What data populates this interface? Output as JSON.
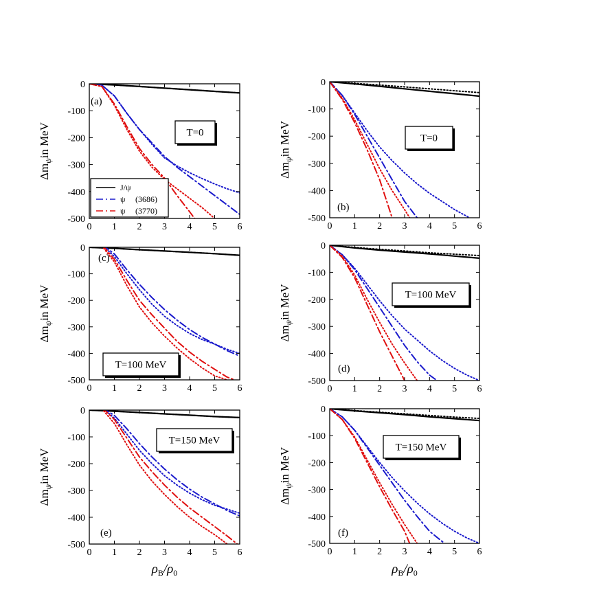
{
  "figure": {
    "ylabel_main": "Δm",
    "ylabel_sub": "ψ",
    "ylabel_tail": "in MeV",
    "xlabel_main": "ρ",
    "xlabel_sub1": "B",
    "xlabel_sep": "/ρ",
    "xlabel_sub2": "0"
  },
  "legend": [
    {
      "symbol": "J/ψ",
      "mass": "",
      "color": "#000000"
    },
    {
      "symbol": "ψ",
      "mass": "(3686)",
      "color": "#0000dd"
    },
    {
      "symbol": "ψ",
      "mass": "(3770)",
      "color": "#dd0000"
    }
  ],
  "colors": {
    "jpsi": "#000000",
    "psi3686": "#1a1acc",
    "psi3770": "#e01010"
  },
  "chart_data": [
    {
      "type": "line",
      "panel": "(a)",
      "temperature_label": "T=0",
      "xlim": [
        0,
        6
      ],
      "ylim": [
        -500,
        0
      ],
      "xticks": [
        0,
        1,
        2,
        3,
        4,
        5,
        6
      ],
      "yticks": [
        0,
        -100,
        -200,
        -300,
        -400,
        -500
      ],
      "series": [
        {
          "name": "J/ψ",
          "dash": "solid",
          "x": [
            0,
            1,
            2,
            3,
            4,
            5,
            6
          ],
          "y": [
            0,
            -4,
            -10,
            -16,
            -22,
            -28,
            -34
          ]
        },
        {
          "dash": "dotted",
          "x": [
            0,
            1,
            2,
            3,
            4,
            5,
            6
          ],
          "y": [
            0,
            -4,
            -10,
            -16,
            -22,
            -28,
            -34
          ]
        },
        {
          "name": "ψ (3686)",
          "dash": "dashdot",
          "x": [
            0,
            0.5,
            1,
            1.5,
            2,
            2.5,
            3,
            3.5,
            4,
            4.5,
            5,
            5.5,
            6
          ],
          "y": [
            0,
            -5,
            -45,
            -110,
            -170,
            -220,
            -270,
            -310,
            -345,
            -380,
            -415,
            -450,
            -485
          ]
        },
        {
          "dash": "dotted",
          "x": [
            0,
            0.5,
            1,
            1.5,
            2,
            2.5,
            3,
            3.5,
            4,
            4.5,
            5,
            5.5,
            6
          ],
          "y": [
            0,
            -5,
            -45,
            -110,
            -170,
            -225,
            -275,
            -305,
            -330,
            -352,
            -372,
            -390,
            -405
          ]
        },
        {
          "name": "ψ (3770)",
          "dash": "dashdot",
          "x": [
            0,
            0.5,
            1,
            1.5,
            2,
            2.5,
            3,
            3.5,
            4,
            4.2
          ],
          "y": [
            0,
            -10,
            -75,
            -160,
            -240,
            -300,
            -350,
            -415,
            -475,
            -500
          ]
        },
        {
          "dash": "dotted",
          "x": [
            0,
            0.5,
            1,
            1.5,
            2,
            2.5,
            3,
            3.5,
            4,
            4.5,
            5
          ],
          "y": [
            0,
            -10,
            -80,
            -170,
            -250,
            -310,
            -355,
            -390,
            -425,
            -460,
            -500
          ]
        }
      ]
    },
    {
      "type": "line",
      "panel": "(b)",
      "temperature_label": "T=0",
      "xlim": [
        0,
        6
      ],
      "ylim": [
        -500,
        0
      ],
      "xticks": [
        0,
        1,
        2,
        3,
        4,
        5,
        6
      ],
      "yticks": [
        0,
        -100,
        -200,
        -300,
        -400,
        -500
      ],
      "series": [
        {
          "name": "J/ψ",
          "dash": "solid",
          "x": [
            0,
            1,
            2,
            3,
            4,
            5,
            6
          ],
          "y": [
            0,
            -8,
            -17,
            -26,
            -35,
            -44,
            -53
          ]
        },
        {
          "dash": "dotted",
          "x": [
            0,
            1,
            2,
            3,
            4,
            5,
            6
          ],
          "y": [
            0,
            -6,
            -12,
            -19,
            -26,
            -33,
            -40
          ]
        },
        {
          "name": "ψ (3686)",
          "dash": "dashdot",
          "x": [
            0,
            0.5,
            1,
            1.5,
            2,
            2.5,
            3,
            3.5
          ],
          "y": [
            0,
            -50,
            -120,
            -200,
            -280,
            -360,
            -440,
            -500
          ]
        },
        {
          "dash": "dotted",
          "x": [
            0,
            0.5,
            1,
            1.5,
            2,
            2.5,
            3,
            3.5,
            4,
            4.5,
            5,
            5.6
          ],
          "y": [
            0,
            -50,
            -115,
            -180,
            -240,
            -290,
            -335,
            -375,
            -410,
            -440,
            -470,
            -500
          ]
        },
        {
          "name": "ψ (3770)",
          "dash": "dashdot",
          "x": [
            0,
            0.5,
            1,
            1.5,
            2,
            2.5
          ],
          "y": [
            0,
            -65,
            -150,
            -250,
            -360,
            -500
          ]
        },
        {
          "dash": "dotted",
          "x": [
            0,
            0.5,
            1,
            1.5,
            2,
            2.5,
            3,
            3.2
          ],
          "y": [
            0,
            -60,
            -140,
            -230,
            -320,
            -400,
            -470,
            -500
          ]
        }
      ]
    },
    {
      "type": "line",
      "panel": "(c)",
      "temperature_label": "T=100 MeV",
      "xlim": [
        0,
        6
      ],
      "ylim": [
        -500,
        0
      ],
      "xticks": [
        0,
        1,
        2,
        3,
        4,
        5,
        6
      ],
      "yticks": [
        0,
        -100,
        -200,
        -300,
        -400,
        -500
      ],
      "series": [
        {
          "name": "J/ψ",
          "dash": "solid",
          "x": [
            0,
            1,
            2,
            3,
            4,
            5,
            6
          ],
          "y": [
            0,
            -4,
            -9,
            -14,
            -19,
            -24,
            -30
          ]
        },
        {
          "dash": "dotted",
          "x": [
            0,
            1,
            2,
            3,
            4,
            5,
            6
          ],
          "y": [
            0,
            -4,
            -9,
            -14,
            -19,
            -24,
            -30
          ]
        },
        {
          "name": "ψ (3686)",
          "dash": "dashdot",
          "x": [
            0,
            0.5,
            1,
            1.5,
            2,
            2.5,
            3,
            3.5,
            4,
            4.5,
            5,
            5.5,
            6
          ],
          "y": [
            5,
            10,
            -25,
            -85,
            -140,
            -190,
            -235,
            -275,
            -310,
            -340,
            -365,
            -390,
            -410
          ]
        },
        {
          "dash": "dotted",
          "x": [
            0,
            0.5,
            1,
            1.5,
            2,
            2.5,
            3,
            3.5,
            4,
            4.5,
            5,
            5.5,
            6
          ],
          "y": [
            5,
            10,
            -35,
            -100,
            -160,
            -215,
            -260,
            -295,
            -325,
            -348,
            -365,
            -385,
            -400
          ]
        },
        {
          "name": "ψ (3770)",
          "dash": "dashdot",
          "x": [
            0,
            0.5,
            1,
            1.5,
            2,
            2.5,
            3,
            3.5,
            4,
            4.5,
            5,
            5.5,
            5.8
          ],
          "y": [
            5,
            10,
            -45,
            -125,
            -200,
            -255,
            -305,
            -355,
            -395,
            -430,
            -460,
            -490,
            -500
          ]
        },
        {
          "dash": "dotted",
          "x": [
            0,
            0.5,
            1,
            1.5,
            2,
            2.5,
            3,
            3.5,
            4,
            4.5,
            5,
            5.5
          ],
          "y": [
            5,
            5,
            -55,
            -145,
            -225,
            -285,
            -335,
            -380,
            -420,
            -455,
            -485,
            -500
          ]
        }
      ]
    },
    {
      "type": "line",
      "panel": "(d)",
      "temperature_label": "T=100 MeV",
      "xlim": [
        0,
        6
      ],
      "ylim": [
        -500,
        0
      ],
      "xticks": [
        0,
        1,
        2,
        3,
        4,
        5,
        6
      ],
      "yticks": [
        0,
        -100,
        -200,
        -300,
        -400,
        -500
      ],
      "series": [
        {
          "name": "J/ψ",
          "dash": "solid",
          "x": [
            0,
            1,
            2,
            3,
            4,
            5,
            6
          ],
          "y": [
            0,
            -10,
            -18,
            -25,
            -32,
            -40,
            -48
          ]
        },
        {
          "dash": "dotted",
          "x": [
            0,
            1,
            2,
            3,
            4,
            5,
            6
          ],
          "y": [
            0,
            -8,
            -15,
            -21,
            -28,
            -33,
            -38
          ]
        },
        {
          "name": "ψ (3686)",
          "dash": "dashdot",
          "x": [
            0,
            0.5,
            1,
            1.5,
            2,
            2.5,
            3,
            3.5,
            4,
            4.3
          ],
          "y": [
            0,
            -35,
            -90,
            -160,
            -230,
            -300,
            -370,
            -430,
            -480,
            -500
          ]
        },
        {
          "dash": "dotted",
          "x": [
            0,
            0.5,
            1,
            1.5,
            2,
            2.5,
            3,
            3.5,
            4,
            4.5,
            5,
            5.5,
            6
          ],
          "y": [
            0,
            -35,
            -85,
            -145,
            -205,
            -260,
            -310,
            -350,
            -390,
            -425,
            -455,
            -480,
            -500
          ]
        },
        {
          "name": "ψ (3770)",
          "dash": "dashdot",
          "x": [
            0,
            0.5,
            1,
            1.5,
            2,
            2.5,
            3
          ],
          "y": [
            0,
            -45,
            -120,
            -220,
            -320,
            -410,
            -500
          ]
        },
        {
          "dash": "dotted",
          "x": [
            0,
            0.5,
            1,
            1.5,
            2,
            2.5,
            3,
            3.5
          ],
          "y": [
            0,
            -40,
            -110,
            -200,
            -285,
            -365,
            -435,
            -500
          ]
        }
      ]
    },
    {
      "type": "line",
      "panel": "(e)",
      "temperature_label": "T=150 MeV",
      "xlim": [
        0,
        6
      ],
      "ylim": [
        -500,
        0
      ],
      "xticks": [
        0,
        1,
        2,
        3,
        4,
        5,
        6
      ],
      "yticks": [
        0,
        -100,
        -200,
        -300,
        -400,
        -500
      ],
      "series": [
        {
          "name": "J/ψ",
          "dash": "solid",
          "x": [
            0,
            1,
            2,
            3,
            4,
            5,
            6
          ],
          "y": [
            0,
            -4,
            -9,
            -14,
            -19,
            -24,
            -28
          ]
        },
        {
          "dash": "dotted",
          "x": [
            0,
            1,
            2,
            3,
            4,
            5,
            6
          ],
          "y": [
            0,
            -4,
            -9,
            -14,
            -19,
            -24,
            -28
          ]
        },
        {
          "name": "ψ (3686)",
          "dash": "dashdot",
          "x": [
            0,
            0.5,
            1,
            1.5,
            2,
            2.5,
            3,
            3.5,
            4,
            4.5,
            5,
            5.5,
            6
          ],
          "y": [
            5,
            10,
            -20,
            -70,
            -125,
            -175,
            -220,
            -260,
            -295,
            -325,
            -350,
            -375,
            -395
          ]
        },
        {
          "dash": "dotted",
          "x": [
            0,
            0.5,
            1,
            1.5,
            2,
            2.5,
            3,
            3.5,
            4,
            4.5,
            5,
            5.5,
            6
          ],
          "y": [
            5,
            10,
            -30,
            -90,
            -150,
            -200,
            -245,
            -280,
            -310,
            -335,
            -355,
            -370,
            -385
          ]
        },
        {
          "name": "ψ (3770)",
          "dash": "dashdot",
          "x": [
            0,
            0.5,
            1,
            1.5,
            2,
            2.5,
            3,
            3.5,
            4,
            4.5,
            5,
            5.5,
            5.9
          ],
          "y": [
            5,
            10,
            -35,
            -105,
            -175,
            -230,
            -280,
            -325,
            -365,
            -400,
            -435,
            -470,
            -500
          ]
        },
        {
          "dash": "dotted",
          "x": [
            0,
            0.5,
            1,
            1.5,
            2,
            2.5,
            3,
            3.5,
            4,
            4.5,
            5,
            5.5
          ],
          "y": [
            5,
            5,
            -50,
            -130,
            -205,
            -265,
            -315,
            -360,
            -400,
            -435,
            -465,
            -500
          ]
        }
      ]
    },
    {
      "type": "line",
      "panel": "(f)",
      "temperature_label": "T=150 MeV",
      "xlim": [
        0,
        6
      ],
      "ylim": [
        -500,
        0
      ],
      "xticks": [
        0,
        1,
        2,
        3,
        4,
        5,
        6
      ],
      "yticks": [
        0,
        -100,
        -200,
        -300,
        -400,
        -500
      ],
      "series": [
        {
          "name": "J/ψ",
          "dash": "solid",
          "x": [
            0,
            1,
            2,
            3,
            4,
            5,
            6
          ],
          "y": [
            0,
            -8,
            -15,
            -22,
            -30,
            -37,
            -44
          ]
        },
        {
          "dash": "dotted",
          "x": [
            0,
            1,
            2,
            3,
            4,
            5,
            6
          ],
          "y": [
            0,
            -7,
            -13,
            -19,
            -25,
            -31,
            -36
          ]
        },
        {
          "name": "ψ (3686)",
          "dash": "dashdot",
          "x": [
            0,
            0.5,
            1,
            1.5,
            2,
            2.5,
            3,
            3.5,
            4,
            4.6
          ],
          "y": [
            0,
            -30,
            -80,
            -145,
            -210,
            -275,
            -340,
            -400,
            -455,
            -500
          ]
        },
        {
          "dash": "dotted",
          "x": [
            0,
            0.5,
            1,
            1.5,
            2,
            2.5,
            3,
            3.5,
            4,
            4.5,
            5,
            5.5,
            6
          ],
          "y": [
            0,
            -30,
            -80,
            -140,
            -200,
            -255,
            -305,
            -350,
            -390,
            -425,
            -455,
            -480,
            -500
          ]
        },
        {
          "name": "ψ (3770)",
          "dash": "dashdot",
          "x": [
            0,
            0.5,
            1,
            1.5,
            2,
            2.5,
            3,
            3.2
          ],
          "y": [
            0,
            -40,
            -110,
            -200,
            -290,
            -375,
            -455,
            -500
          ]
        },
        {
          "dash": "dotted",
          "x": [
            0,
            0.5,
            1,
            1.5,
            2,
            2.5,
            3,
            3.5
          ],
          "y": [
            0,
            -40,
            -105,
            -190,
            -275,
            -355,
            -430,
            -500
          ]
        }
      ]
    }
  ]
}
